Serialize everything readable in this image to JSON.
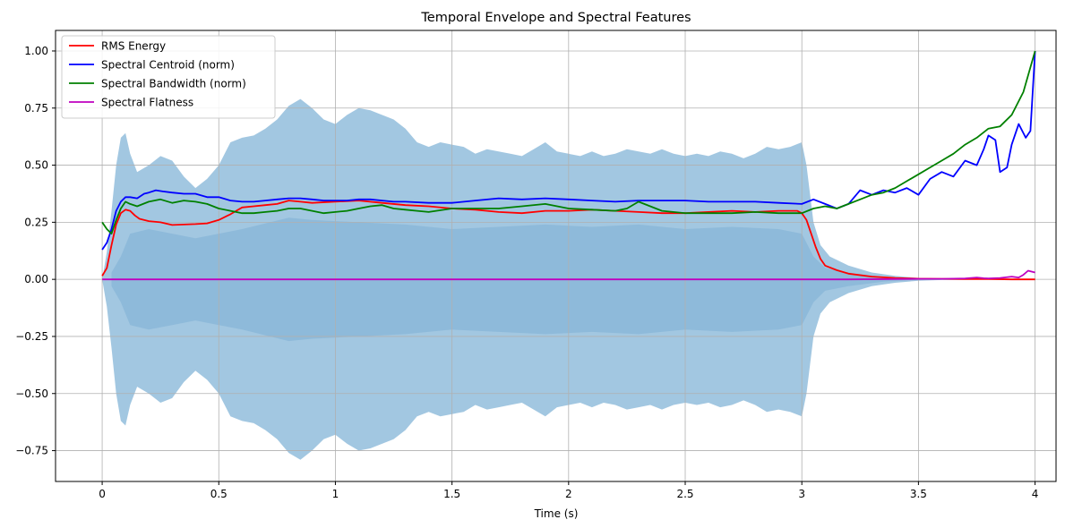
{
  "chart_data": {
    "type": "line",
    "title": "Temporal Envelope and Spectral Features",
    "xlabel": "Time (s)",
    "ylabel": "",
    "xlim": [
      -0.2,
      4.09
    ],
    "ylim": [
      -0.885,
      1.09
    ],
    "grid": true,
    "legend_position": "top-left",
    "x_ticks": [
      0,
      0.5,
      1,
      1.5,
      2,
      2.5,
      3,
      3.5,
      4
    ],
    "x_tick_labels": [
      "0",
      "0.5",
      "1",
      "1.5",
      "2",
      "2.5",
      "3",
      "3.5",
      "4"
    ],
    "y_ticks": [
      -0.75,
      -0.5,
      -0.25,
      0,
      0.25,
      0.5,
      0.75,
      1.0
    ],
    "y_tick_labels": [
      "−0.75",
      "−0.50",
      "−0.25",
      "0.00",
      "0.25",
      "0.50",
      "0.75",
      "1.00"
    ],
    "waveform_envelope": {
      "color": "#7aafd4",
      "inner_color": "#6aa3cf",
      "outer": [
        [
          0,
          0
        ],
        [
          0.02,
          0.12
        ],
        [
          0.04,
          0.3
        ],
        [
          0.06,
          0.5
        ],
        [
          0.08,
          0.62
        ],
        [
          0.1,
          0.64
        ],
        [
          0.12,
          0.55
        ],
        [
          0.15,
          0.47
        ],
        [
          0.2,
          0.5
        ],
        [
          0.25,
          0.54
        ],
        [
          0.3,
          0.52
        ],
        [
          0.35,
          0.45
        ],
        [
          0.4,
          0.4
        ],
        [
          0.45,
          0.44
        ],
        [
          0.5,
          0.5
        ],
        [
          0.55,
          0.6
        ],
        [
          0.6,
          0.62
        ],
        [
          0.65,
          0.63
        ],
        [
          0.7,
          0.66
        ],
        [
          0.75,
          0.7
        ],
        [
          0.8,
          0.76
        ],
        [
          0.85,
          0.79
        ],
        [
          0.9,
          0.75
        ],
        [
          0.95,
          0.7
        ],
        [
          1.0,
          0.68
        ],
        [
          1.05,
          0.72
        ],
        [
          1.1,
          0.75
        ],
        [
          1.15,
          0.74
        ],
        [
          1.2,
          0.72
        ],
        [
          1.25,
          0.7
        ],
        [
          1.3,
          0.66
        ],
        [
          1.35,
          0.6
        ],
        [
          1.4,
          0.58
        ],
        [
          1.45,
          0.6
        ],
        [
          1.5,
          0.59
        ],
        [
          1.55,
          0.58
        ],
        [
          1.6,
          0.55
        ],
        [
          1.65,
          0.57
        ],
        [
          1.7,
          0.56
        ],
        [
          1.75,
          0.55
        ],
        [
          1.8,
          0.54
        ],
        [
          1.85,
          0.57
        ],
        [
          1.9,
          0.6
        ],
        [
          1.95,
          0.56
        ],
        [
          2.0,
          0.55
        ],
        [
          2.05,
          0.54
        ],
        [
          2.1,
          0.56
        ],
        [
          2.15,
          0.54
        ],
        [
          2.2,
          0.55
        ],
        [
          2.25,
          0.57
        ],
        [
          2.3,
          0.56
        ],
        [
          2.35,
          0.55
        ],
        [
          2.4,
          0.57
        ],
        [
          2.45,
          0.55
        ],
        [
          2.5,
          0.54
        ],
        [
          2.55,
          0.55
        ],
        [
          2.6,
          0.54
        ],
        [
          2.65,
          0.56
        ],
        [
          2.7,
          0.55
        ],
        [
          2.75,
          0.53
        ],
        [
          2.8,
          0.55
        ],
        [
          2.85,
          0.58
        ],
        [
          2.9,
          0.57
        ],
        [
          2.95,
          0.58
        ],
        [
          3.0,
          0.6
        ],
        [
          3.02,
          0.5
        ],
        [
          3.05,
          0.25
        ],
        [
          3.08,
          0.15
        ],
        [
          3.12,
          0.1
        ],
        [
          3.2,
          0.06
        ],
        [
          3.3,
          0.03
        ],
        [
          3.4,
          0.015
        ],
        [
          3.5,
          0.006
        ],
        [
          3.6,
          0.003
        ],
        [
          3.8,
          0.001
        ],
        [
          4.0,
          0
        ]
      ],
      "inner": [
        [
          0.04,
          0.03
        ],
        [
          0.08,
          0.1
        ],
        [
          0.12,
          0.2
        ],
        [
          0.2,
          0.22
        ],
        [
          0.3,
          0.2
        ],
        [
          0.4,
          0.18
        ],
        [
          0.5,
          0.2
        ],
        [
          0.6,
          0.22
        ],
        [
          0.8,
          0.27
        ],
        [
          0.9,
          0.26
        ],
        [
          1.1,
          0.25
        ],
        [
          1.3,
          0.24
        ],
        [
          1.5,
          0.22
        ],
        [
          1.7,
          0.23
        ],
        [
          1.9,
          0.24
        ],
        [
          2.1,
          0.23
        ],
        [
          2.3,
          0.24
        ],
        [
          2.5,
          0.22
        ],
        [
          2.7,
          0.23
        ],
        [
          2.9,
          0.22
        ],
        [
          3.0,
          0.2
        ],
        [
          3.05,
          0.1
        ],
        [
          3.1,
          0.05
        ],
        [
          3.2,
          0.03
        ],
        [
          3.35,
          0.01
        ],
        [
          3.5,
          0.002
        ],
        [
          4.0,
          0
        ]
      ]
    },
    "series": [
      {
        "name": "RMS Energy",
        "color": "#ff0000",
        "x": [
          0,
          0.02,
          0.04,
          0.06,
          0.08,
          0.1,
          0.12,
          0.14,
          0.16,
          0.2,
          0.25,
          0.3,
          0.35,
          0.4,
          0.45,
          0.5,
          0.55,
          0.6,
          0.65,
          0.7,
          0.75,
          0.8,
          0.85,
          0.9,
          1.0,
          1.1,
          1.2,
          1.3,
          1.4,
          1.5,
          1.6,
          1.7,
          1.8,
          1.9,
          2.0,
          2.1,
          2.2,
          2.3,
          2.4,
          2.5,
          2.6,
          2.7,
          2.8,
          2.9,
          2.95,
          2.98,
          3.0,
          3.02,
          3.04,
          3.06,
          3.08,
          3.1,
          3.15,
          3.2,
          3.3,
          3.4,
          3.5,
          3.6,
          3.7,
          3.8,
          3.9,
          4.0
        ],
        "values": [
          0.015,
          0.05,
          0.15,
          0.24,
          0.29,
          0.305,
          0.3,
          0.28,
          0.265,
          0.255,
          0.25,
          0.238,
          0.24,
          0.242,
          0.245,
          0.26,
          0.285,
          0.315,
          0.32,
          0.325,
          0.33,
          0.345,
          0.34,
          0.335,
          0.34,
          0.345,
          0.335,
          0.325,
          0.32,
          0.31,
          0.305,
          0.295,
          0.29,
          0.3,
          0.3,
          0.305,
          0.3,
          0.295,
          0.29,
          0.29,
          0.295,
          0.3,
          0.295,
          0.3,
          0.3,
          0.3,
          0.29,
          0.26,
          0.2,
          0.14,
          0.09,
          0.06,
          0.04,
          0.025,
          0.012,
          0.006,
          0.003,
          0.002,
          0.001,
          0.001,
          0.0,
          0.0
        ]
      },
      {
        "name": "Spectral Centroid (norm)",
        "color": "#0000ff",
        "x": [
          0,
          0.02,
          0.04,
          0.06,
          0.08,
          0.1,
          0.12,
          0.15,
          0.18,
          0.2,
          0.23,
          0.26,
          0.3,
          0.35,
          0.4,
          0.45,
          0.5,
          0.55,
          0.6,
          0.65,
          0.7,
          0.75,
          0.8,
          0.85,
          0.9,
          0.95,
          1.0,
          1.05,
          1.1,
          1.15,
          1.2,
          1.25,
          1.3,
          1.4,
          1.5,
          1.6,
          1.7,
          1.8,
          1.9,
          2.0,
          2.1,
          2.2,
          2.3,
          2.4,
          2.5,
          2.6,
          2.7,
          2.8,
          2.9,
          3.0,
          3.05,
          3.1,
          3.15,
          3.2,
          3.25,
          3.3,
          3.35,
          3.4,
          3.45,
          3.5,
          3.55,
          3.6,
          3.65,
          3.7,
          3.75,
          3.78,
          3.8,
          3.83,
          3.85,
          3.88,
          3.9,
          3.93,
          3.96,
          3.98,
          4.0
        ],
        "values": [
          0.13,
          0.16,
          0.22,
          0.3,
          0.34,
          0.36,
          0.36,
          0.355,
          0.375,
          0.38,
          0.39,
          0.385,
          0.38,
          0.375,
          0.375,
          0.36,
          0.36,
          0.345,
          0.34,
          0.34,
          0.345,
          0.35,
          0.355,
          0.355,
          0.35,
          0.345,
          0.345,
          0.345,
          0.35,
          0.35,
          0.345,
          0.34,
          0.34,
          0.335,
          0.335,
          0.345,
          0.355,
          0.35,
          0.355,
          0.35,
          0.345,
          0.34,
          0.345,
          0.345,
          0.345,
          0.34,
          0.34,
          0.34,
          0.335,
          0.33,
          0.35,
          0.33,
          0.31,
          0.33,
          0.39,
          0.37,
          0.39,
          0.38,
          0.4,
          0.37,
          0.44,
          0.47,
          0.45,
          0.52,
          0.5,
          0.57,
          0.63,
          0.61,
          0.47,
          0.49,
          0.59,
          0.68,
          0.62,
          0.65,
          1.0
        ]
      },
      {
        "name": "Spectral Bandwidth (norm)",
        "color": "#008000",
        "x": [
          0,
          0.02,
          0.04,
          0.06,
          0.08,
          0.1,
          0.12,
          0.15,
          0.2,
          0.25,
          0.3,
          0.35,
          0.4,
          0.45,
          0.5,
          0.55,
          0.6,
          0.65,
          0.7,
          0.75,
          0.8,
          0.85,
          0.9,
          0.95,
          1.0,
          1.05,
          1.1,
          1.15,
          1.2,
          1.25,
          1.3,
          1.35,
          1.4,
          1.5,
          1.6,
          1.7,
          1.8,
          1.9,
          2.0,
          2.1,
          2.2,
          2.25,
          2.3,
          2.4,
          2.5,
          2.6,
          2.7,
          2.8,
          2.9,
          3.0,
          3.05,
          3.1,
          3.15,
          3.2,
          3.25,
          3.3,
          3.35,
          3.4,
          3.45,
          3.5,
          3.55,
          3.6,
          3.65,
          3.7,
          3.75,
          3.8,
          3.85,
          3.9,
          3.95,
          4.0
        ],
        "values": [
          0.25,
          0.22,
          0.2,
          0.26,
          0.31,
          0.34,
          0.33,
          0.32,
          0.34,
          0.35,
          0.335,
          0.345,
          0.34,
          0.33,
          0.31,
          0.3,
          0.29,
          0.29,
          0.295,
          0.3,
          0.31,
          0.31,
          0.3,
          0.29,
          0.295,
          0.3,
          0.31,
          0.32,
          0.325,
          0.31,
          0.305,
          0.3,
          0.295,
          0.31,
          0.31,
          0.31,
          0.32,
          0.33,
          0.31,
          0.305,
          0.3,
          0.31,
          0.34,
          0.3,
          0.29,
          0.29,
          0.29,
          0.295,
          0.29,
          0.29,
          0.31,
          0.32,
          0.31,
          0.33,
          0.35,
          0.37,
          0.38,
          0.4,
          0.43,
          0.46,
          0.49,
          0.52,
          0.55,
          0.59,
          0.62,
          0.66,
          0.67,
          0.72,
          0.82,
          1.0
        ]
      },
      {
        "name": "Spectral Flatness",
        "color": "#bf00bf",
        "x": [
          0,
          0.5,
          1,
          1.5,
          2,
          2.5,
          3,
          3.2,
          3.5,
          3.6,
          3.7,
          3.75,
          3.78,
          3.8,
          3.85,
          3.9,
          3.93,
          3.95,
          3.97,
          4.0
        ],
        "values": [
          0,
          0,
          0,
          0,
          0,
          0,
          0,
          0,
          0.002,
          0.002,
          0.004,
          0.008,
          0.005,
          0.004,
          0.006,
          0.012,
          0.008,
          0.02,
          0.038,
          0.03
        ]
      }
    ]
  }
}
